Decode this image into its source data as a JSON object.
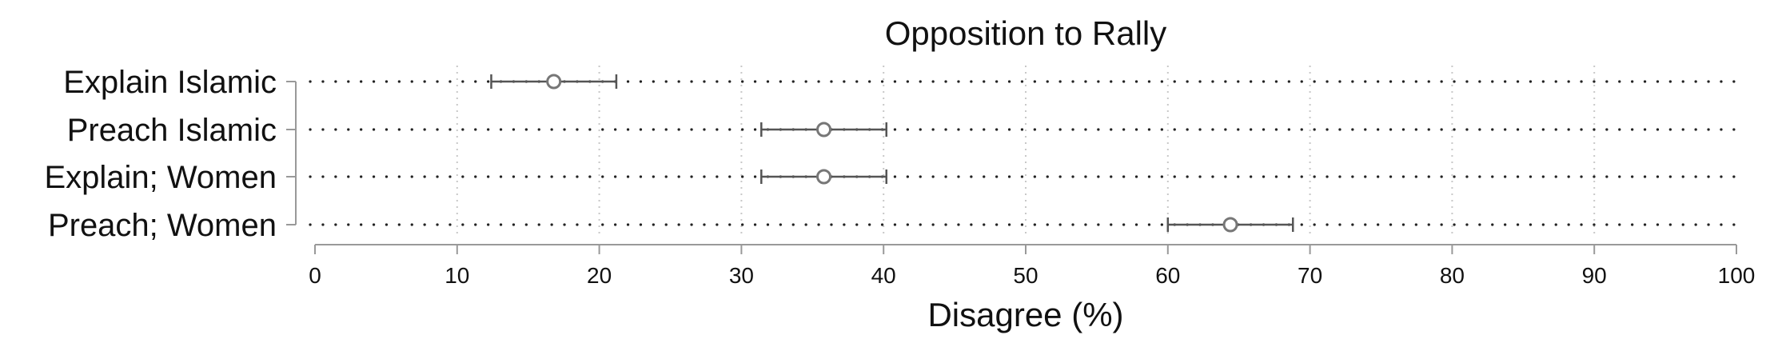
{
  "chart_data": {
    "type": "scatter",
    "title": "Opposition to Rally",
    "xlabel": "Disagree (%)",
    "ylabel": "",
    "xlim": [
      0,
      100
    ],
    "xticks": [
      0,
      10,
      20,
      30,
      40,
      50,
      60,
      70,
      80,
      90,
      100
    ],
    "grid": true,
    "categories": [
      "Explain Islamic",
      "Preach Islamic",
      "Explain; Women",
      "Preach; Women"
    ],
    "values": [
      16.8,
      35.8,
      35.8,
      64.4
    ],
    "ci_lower": [
      12.4,
      31.4,
      31.4,
      60.0
    ],
    "ci_upper": [
      21.2,
      40.2,
      40.2,
      68.8
    ],
    "colors": {
      "marker": "#777777",
      "errorbar": "#555555",
      "axis": "#999999",
      "grid": "#c8c8c8",
      "dots": "#222222",
      "text": "#111111"
    }
  }
}
